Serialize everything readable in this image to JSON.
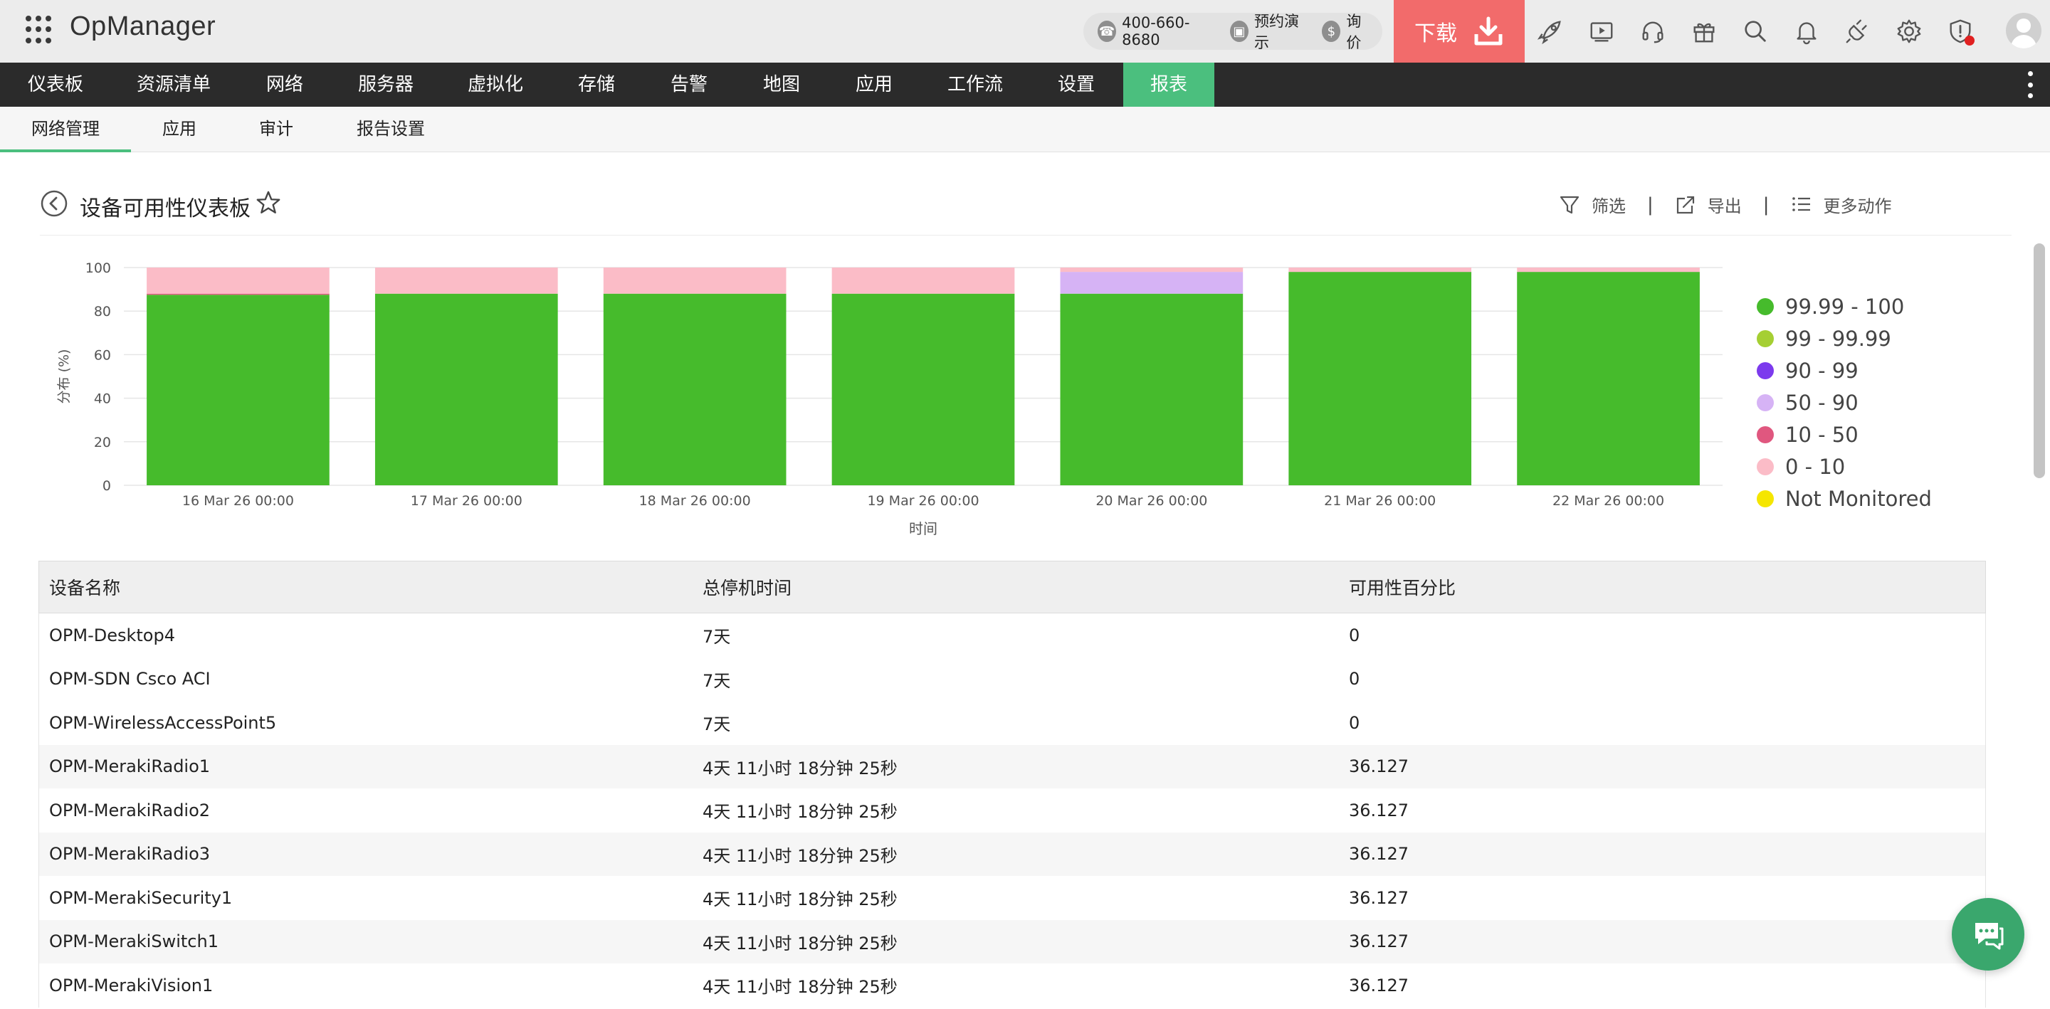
{
  "app": {
    "brand": "OpManager"
  },
  "topbar": {
    "phone": "400-660-8680",
    "demo": "预约演示",
    "price": "询价",
    "download": "下载",
    "icons": [
      "rocket-icon",
      "video-icon",
      "headset-icon",
      "gift-icon",
      "search-icon",
      "bell-icon",
      "plug-icon",
      "gear-icon",
      "shield-alert-icon"
    ]
  },
  "nav": {
    "items": [
      {
        "label": "仪表板"
      },
      {
        "label": "资源清单"
      },
      {
        "label": "网络"
      },
      {
        "label": "服务器"
      },
      {
        "label": "虚拟化"
      },
      {
        "label": "存储"
      },
      {
        "label": "告警"
      },
      {
        "label": "地图"
      },
      {
        "label": "应用"
      },
      {
        "label": "工作流"
      },
      {
        "label": "设置"
      },
      {
        "label": "报表"
      }
    ],
    "active": "报表"
  },
  "subnav": {
    "items": [
      {
        "label": "网络管理"
      },
      {
        "label": "应用"
      },
      {
        "label": "审计"
      },
      {
        "label": "报告设置"
      }
    ],
    "active": "网络管理"
  },
  "page": {
    "title": "设备可用性仪表板",
    "actions": {
      "filter": "筛选",
      "export": "导出",
      "more": "更多动作"
    }
  },
  "colors": {
    "brand_green": "#4bbf7e",
    "download_red": "#f26b6b",
    "s_99_99_100": "#46bb2c",
    "s_99_99_99": "#a5cf33",
    "s_90_99": "#7c3aed",
    "s_50_90": "#d6b3f5",
    "s_10_50": "#e0577f",
    "s_0_10": "#fbbcc7",
    "s_not_monitored": "#f5e600"
  },
  "chart_data": {
    "type": "bar",
    "stacked": true,
    "categories": [
      "16 Mar 26 00:00",
      "17 Mar 26 00:00",
      "18 Mar 26 00:00",
      "19 Mar 26 00:00",
      "20 Mar 26 00:00",
      "21 Mar 26 00:00",
      "22 Mar 26 00:00"
    ],
    "series": [
      {
        "name": "99.99 - 100",
        "color": "#46bb2c",
        "values": [
          87.5,
          88,
          88,
          88,
          88,
          98,
          98
        ]
      },
      {
        "name": "99 - 99.99",
        "color": "#a5cf33",
        "values": [
          0,
          0,
          0,
          0,
          0,
          0,
          0
        ]
      },
      {
        "name": "90 - 99",
        "color": "#7c3aed",
        "values": [
          0,
          0,
          0,
          0,
          0,
          0,
          0
        ]
      },
      {
        "name": "50 - 90",
        "color": "#d6b3f5",
        "values": [
          0,
          0,
          0,
          0,
          10,
          0,
          0
        ]
      },
      {
        "name": "10 - 50",
        "color": "#e0577f",
        "values": [
          0.5,
          0,
          0,
          0,
          0,
          0,
          0
        ]
      },
      {
        "name": "0 - 10",
        "color": "#fbbcc7",
        "values": [
          12,
          12,
          12,
          12,
          2,
          2,
          2
        ]
      },
      {
        "name": "Not Monitored",
        "color": "#f5e600",
        "values": [
          0,
          0,
          0,
          0,
          0,
          0,
          0
        ]
      }
    ],
    "ylim": [
      0,
      100
    ],
    "yticks": [
      0,
      20,
      40,
      60,
      80,
      100
    ],
    "xlabel": "时间",
    "ylabel": "分布 (%)",
    "grid": true,
    "legend": "right"
  },
  "table": {
    "headers": [
      "设备名称",
      "总停机时间",
      "可用性百分比"
    ],
    "rows": [
      [
        "OPM-Desktop4",
        "7天",
        "0"
      ],
      [
        "OPM-SDN Csco ACI",
        "7天",
        "0"
      ],
      [
        "OPM-WirelessAccessPoint5",
        "7天",
        "0"
      ],
      [
        "OPM-MerakiRadio1",
        "4天 11小时 18分钟 25秒",
        "36.127"
      ],
      [
        "OPM-MerakiRadio2",
        "4天 11小时 18分钟 25秒",
        "36.127"
      ],
      [
        "OPM-MerakiRadio3",
        "4天 11小时 18分钟 25秒",
        "36.127"
      ],
      [
        "OPM-MerakiSecurity1",
        "4天 11小时 18分钟 25秒",
        "36.127"
      ],
      [
        "OPM-MerakiSwitch1",
        "4天 11小时 18分钟 25秒",
        "36.127"
      ],
      [
        "OPM-MerakiVision1",
        "4天 11小时 18分钟 25秒",
        "36.127"
      ]
    ]
  }
}
